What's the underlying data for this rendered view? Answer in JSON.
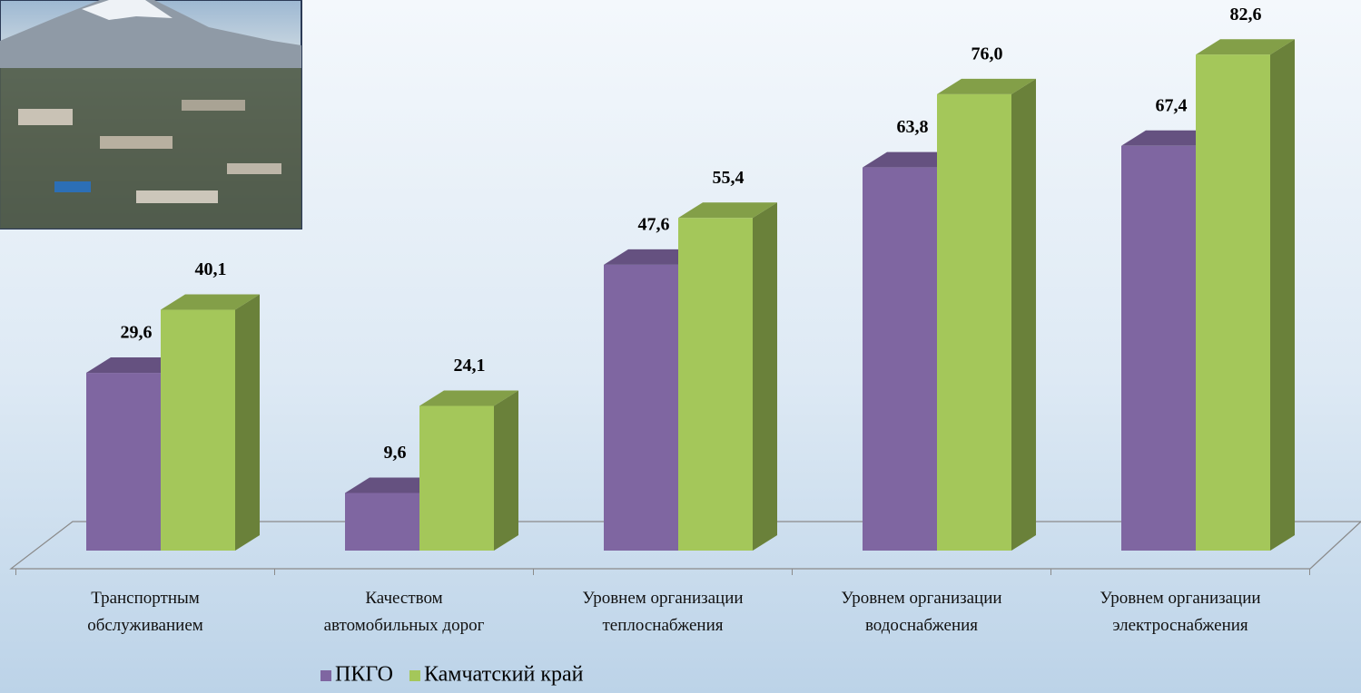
{
  "chart_data": {
    "type": "bar3d",
    "categories": [
      "Транспортным\nобслуживанием",
      "Качеством\nавтомобильных дорог",
      "Уровнем организации\nтеплоснабжения",
      "Уровнем организации\nводоснабжения",
      "Уровнем организации\nэлектроснабжения"
    ],
    "series": [
      {
        "name": "ПКГО",
        "color": "#7f66a1",
        "values": [
          29.6,
          9.6,
          47.6,
          63.8,
          67.4
        ],
        "value_labels": [
          "29,6",
          "9,6",
          "47,6",
          "63,8",
          "67,4"
        ]
      },
      {
        "name": "Камчатский край",
        "color": "#a4c75a",
        "values": [
          40.1,
          24.1,
          55.4,
          76.0,
          82.6
        ],
        "value_labels": [
          "40,1",
          "24,1",
          "55,4",
          "76,0",
          "82,6"
        ]
      }
    ],
    "legend": "bottom"
  }
}
